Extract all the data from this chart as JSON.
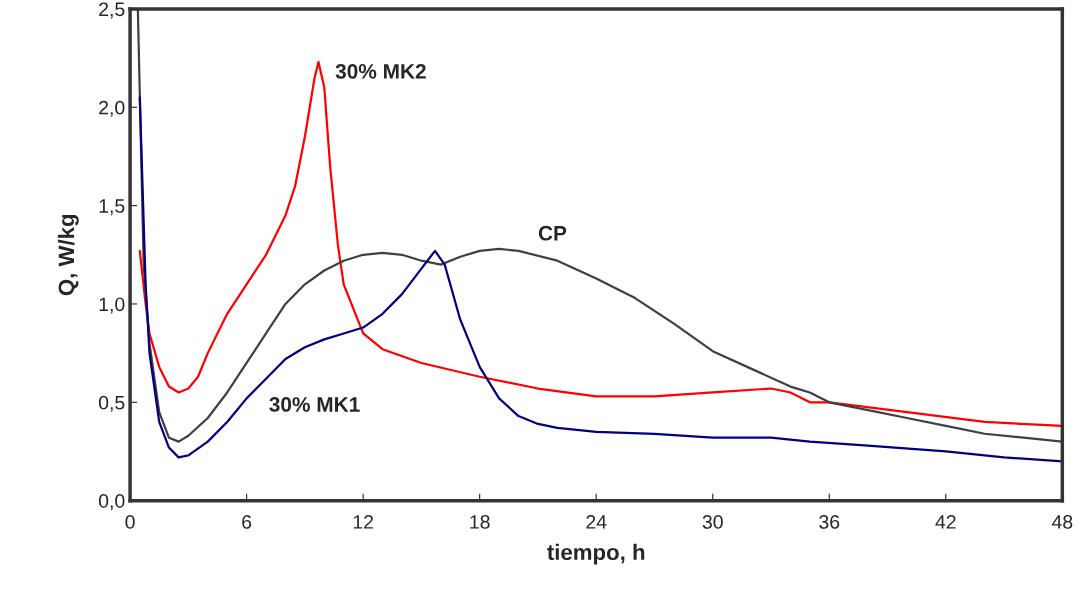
{
  "chart_data": {
    "type": "line",
    "xlabel": "tiempo, h",
    "ylabel": "Q, W/kg",
    "xlim": [
      0,
      48
    ],
    "xticks": [
      0,
      6,
      12,
      18,
      24,
      30,
      36,
      42,
      48
    ],
    "ylim": [
      0,
      2.5
    ],
    "yticks": [
      {
        "value": 0,
        "label": "0,0"
      },
      {
        "value": 0.5,
        "label": "0,5"
      },
      {
        "value": 1,
        "label": "1,0"
      },
      {
        "value": 1.5,
        "label": "1,5"
      },
      {
        "value": 2,
        "label": "2,0"
      },
      {
        "value": 2.5,
        "label": "2,5"
      }
    ],
    "grid": false,
    "marker": "none",
    "line_style": "solid",
    "series": [
      {
        "color": "#ff0000",
        "x": [
          0.5,
          0.8,
          1.0,
          1.5,
          2.0,
          2.5,
          3.0,
          3.5,
          4.0,
          5.0,
          6.0,
          7.0,
          8.0,
          8.5,
          9.0,
          9.5,
          9.7,
          10.0,
          10.3,
          10.7,
          11.0,
          12.0,
          13.0,
          15.0,
          18.0,
          21.0,
          24.0,
          27.0,
          30.0,
          33.0,
          34.0,
          35.0,
          36.0,
          40.0,
          44.0,
          48.0
        ],
        "values": [
          1.27,
          1.0,
          0.85,
          0.68,
          0.58,
          0.55,
          0.57,
          0.63,
          0.75,
          0.95,
          1.1,
          1.25,
          1.45,
          1.6,
          1.85,
          2.15,
          2.23,
          2.1,
          1.7,
          1.3,
          1.1,
          0.85,
          0.77,
          0.7,
          0.63,
          0.57,
          0.53,
          0.53,
          0.55,
          0.57,
          0.55,
          0.5,
          0.5,
          0.45,
          0.4,
          0.38
        ]
      },
      {
        "color": "#404040",
        "x": [
          0.4,
          0.7,
          1.0,
          1.5,
          2.0,
          2.5,
          3.0,
          4.0,
          5.0,
          6.0,
          7.0,
          8.0,
          9.0,
          10.0,
          11.0,
          12.0,
          13.0,
          14.0,
          15.0,
          16.0,
          17.0,
          18.0,
          19.0,
          20.0,
          22.0,
          24.0,
          26.0,
          28.0,
          30.0,
          32.0,
          34.0,
          35.0,
          36.0,
          38.0,
          40.0,
          42.0,
          44.0,
          46.0,
          48.0
        ],
        "values": [
          2.5,
          1.2,
          0.8,
          0.45,
          0.32,
          0.3,
          0.33,
          0.42,
          0.55,
          0.7,
          0.85,
          1.0,
          1.1,
          1.17,
          1.22,
          1.25,
          1.26,
          1.25,
          1.22,
          1.2,
          1.24,
          1.27,
          1.28,
          1.27,
          1.22,
          1.13,
          1.03,
          0.9,
          0.76,
          0.67,
          0.58,
          0.55,
          0.5,
          0.46,
          0.42,
          0.38,
          0.34,
          0.32,
          0.3
        ]
      },
      {
        "color": "#000080",
        "x": [
          0.5,
          0.8,
          1.0,
          1.5,
          2.0,
          2.5,
          3.0,
          4.0,
          5.0,
          6.0,
          7.0,
          8.0,
          9.0,
          10.0,
          11.0,
          12.0,
          13.0,
          14.0,
          15.0,
          15.7,
          16.2,
          17.0,
          18.0,
          19.0,
          20.0,
          21.0,
          22.0,
          24.0,
          27.0,
          30.0,
          33.0,
          35.0,
          38.0,
          42.0,
          45.0,
          48.0
        ],
        "values": [
          2.05,
          1.1,
          0.75,
          0.4,
          0.27,
          0.22,
          0.23,
          0.3,
          0.4,
          0.52,
          0.62,
          0.72,
          0.78,
          0.82,
          0.85,
          0.88,
          0.95,
          1.05,
          1.18,
          1.27,
          1.2,
          0.92,
          0.68,
          0.52,
          0.43,
          0.39,
          0.37,
          0.35,
          0.34,
          0.32,
          0.32,
          0.3,
          0.28,
          0.25,
          0.22,
          0.2
        ]
      }
    ],
    "annotations": [
      {
        "text": "30% MK2",
        "x": 9.7,
        "y": 2.23
      },
      {
        "text": "CP",
        "x": 19.0,
        "y": 1.28
      },
      {
        "text": "30% MK1",
        "x": 8.0,
        "y": 0.72
      }
    ]
  }
}
